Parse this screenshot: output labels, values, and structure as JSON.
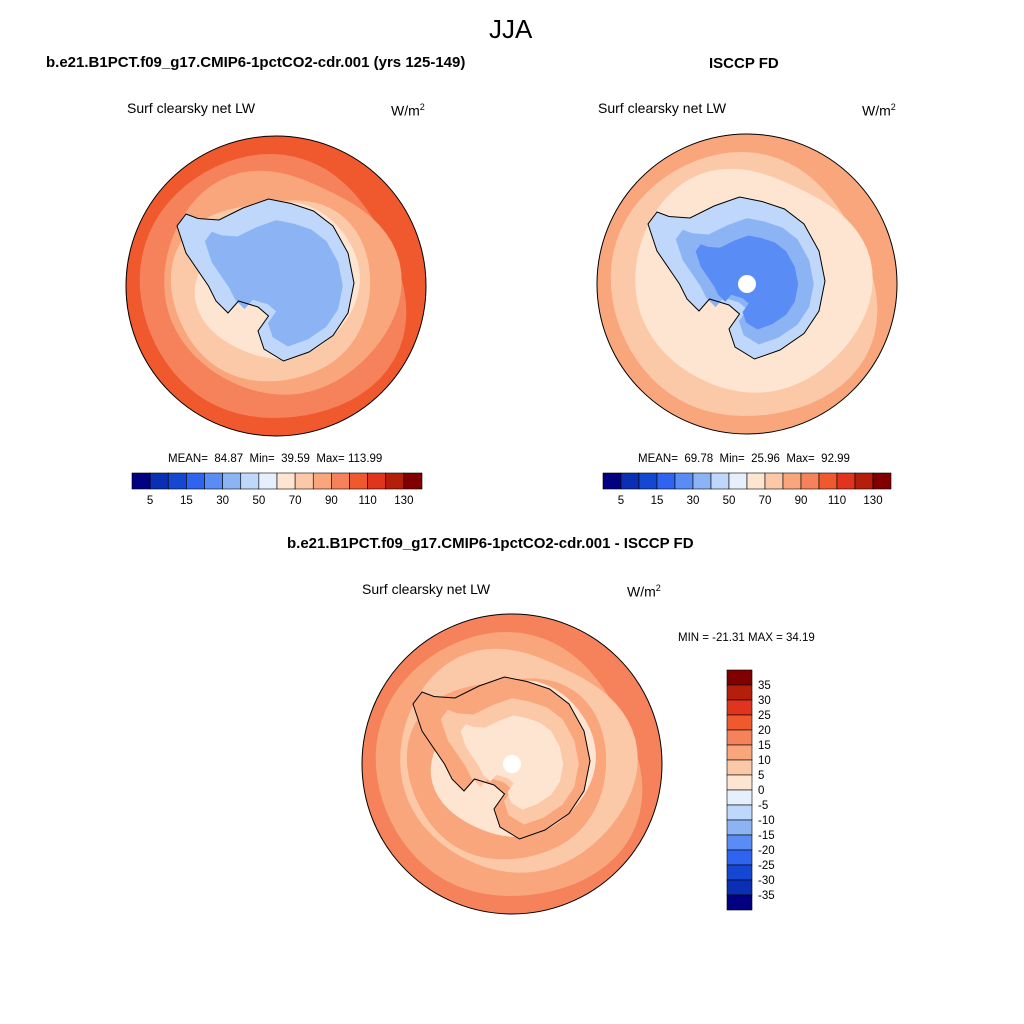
{
  "figure": {
    "season": "JJA",
    "colors": {
      "neg": [
        "#000080",
        "#0a2eb4",
        "#1447d2",
        "#2e64f0",
        "#5a8cf5",
        "#8cb4f5",
        "#bed7fa",
        "#e6f0fc"
      ],
      "pos": [
        "#fde5d2",
        "#fcc9a8",
        "#f9a67d",
        "#f5825a",
        "#f0582d",
        "#e1341e",
        "#b41e0a",
        "#800000"
      ]
    }
  },
  "panels": [
    {
      "id": "model",
      "title": "b.e21.B1PCT.f09_g17.CMIP6-1pctCO2-cdr.001 (yrs 125-149)",
      "field": "Surf clearsky net LW",
      "units_base": "W/m",
      "units_exp": "2",
      "stats": {
        "mean_label": "MEAN=",
        "mean": "84.87",
        "min_label": "Min=",
        "min": "39.59",
        "max_label": "Max=",
        "max": "113.99"
      },
      "colorbar": {
        "orientation": "horizontal",
        "levels": [
          "5",
          "15",
          "30",
          "50",
          "70",
          "90",
          "110",
          "130"
        ]
      }
    },
    {
      "id": "obs",
      "title": "ISCCP FD",
      "field": "Surf clearsky net LW",
      "units_base": "W/m",
      "units_exp": "2",
      "stats": {
        "mean_label": "MEAN=",
        "mean": "69.78",
        "min_label": "Min=",
        "min": "25.96",
        "max_label": "Max=",
        "max": "92.99"
      },
      "colorbar": {
        "orientation": "horizontal",
        "levels": [
          "5",
          "15",
          "30",
          "50",
          "70",
          "90",
          "110",
          "130"
        ]
      }
    },
    {
      "id": "diff",
      "title": "b.e21.B1PCT.f09_g17.CMIP6-1pctCO2-cdr.001 - ISCCP FD",
      "field": "Surf clearsky net LW",
      "units_base": "W/m",
      "units_exp": "2",
      "stats_text": "MIN = -21.31 MAX =  34.19",
      "colorbar": {
        "orientation": "vertical",
        "levels": [
          "35",
          "30",
          "25",
          "20",
          "15",
          "10",
          "5",
          "0",
          "-5",
          "-10",
          "-15",
          "-20",
          "-25",
          "-30",
          "-35"
        ]
      }
    }
  ],
  "chart_data": [
    {
      "type": "heatmap",
      "projection": "south polar stereographic",
      "title": "b.e21.B1PCT.f09_g17.CMIP6-1pctCO2-cdr.001 (yrs 125-149)",
      "variable": "Surf clearsky net LW",
      "units": "W/m2",
      "season": "JJA",
      "mean": 84.87,
      "min": 39.59,
      "max": 113.99,
      "contour_levels": [
        5,
        15,
        30,
        50,
        70,
        90,
        110,
        130
      ]
    },
    {
      "type": "heatmap",
      "projection": "south polar stereographic",
      "title": "ISCCP FD",
      "variable": "Surf clearsky net LW",
      "units": "W/m2",
      "season": "JJA",
      "mean": 69.78,
      "min": 25.96,
      "max": 92.99,
      "contour_levels": [
        5,
        15,
        30,
        50,
        70,
        90,
        110,
        130
      ]
    },
    {
      "type": "heatmap",
      "projection": "south polar stereographic",
      "title": "b.e21.B1PCT.f09_g17.CMIP6-1pctCO2-cdr.001 - ISCCP FD",
      "variable": "Surf clearsky net LW",
      "units": "W/m2",
      "season": "JJA",
      "min": -21.31,
      "max": 34.19,
      "contour_levels": [
        -35,
        -30,
        -25,
        -20,
        -15,
        -10,
        -5,
        0,
        5,
        10,
        15,
        20,
        25,
        30,
        35
      ]
    }
  ]
}
